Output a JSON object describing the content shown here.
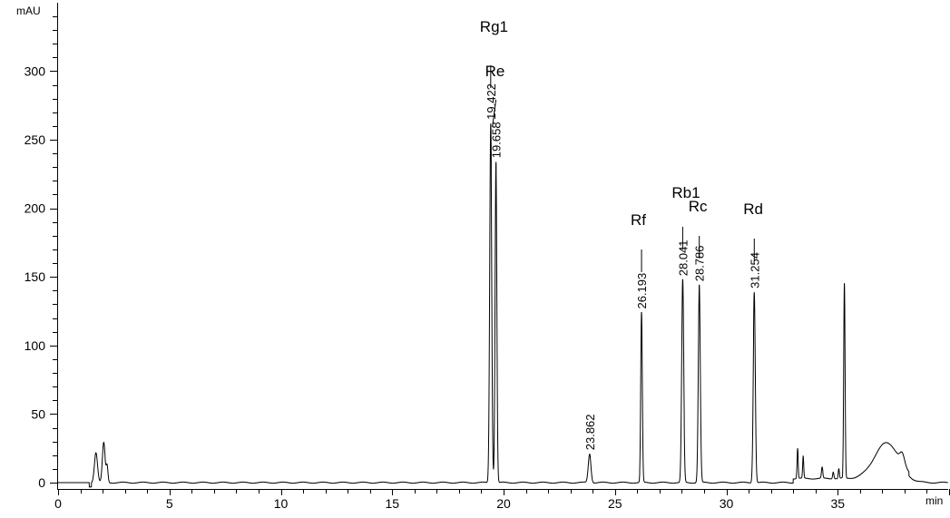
{
  "chart_data": {
    "type": "line",
    "title": "",
    "xlabel": "min",
    "ylabel": "mAU",
    "xlim": [
      0,
      40
    ],
    "ylim": [
      -5,
      350
    ],
    "x_ticks": [
      0,
      5,
      10,
      15,
      20,
      25,
      30,
      35
    ],
    "y_ticks": [
      0,
      50,
      100,
      150,
      200,
      250,
      300
    ],
    "grid": false,
    "line_color": "#000000",
    "peaks": [
      {
        "rt": 1.7,
        "height": 22,
        "width": 0.07,
        "label": ""
      },
      {
        "rt": 2.05,
        "height": 29,
        "width": 0.06,
        "label": ""
      },
      {
        "rt": 2.2,
        "height": 12,
        "width": 0.04,
        "label": ""
      },
      {
        "rt": 19.422,
        "height": 262,
        "width": 0.045,
        "label": "19.422"
      },
      {
        "rt": 19.658,
        "height": 234,
        "width": 0.04,
        "label": "19.658"
      },
      {
        "rt": 23.862,
        "height": 21,
        "width": 0.06,
        "label": "23.862"
      },
      {
        "rt": 26.193,
        "height": 124,
        "width": 0.035,
        "label": "26.193"
      },
      {
        "rt": 28.041,
        "height": 148,
        "width": 0.045,
        "label": "28.041"
      },
      {
        "rt": 28.786,
        "height": 144,
        "width": 0.045,
        "label": "28.786"
      },
      {
        "rt": 31.254,
        "height": 139,
        "width": 0.045,
        "label": "31.254"
      },
      {
        "rt": 33.2,
        "height": 22,
        "width": 0.025,
        "label": ""
      },
      {
        "rt": 33.45,
        "height": 16,
        "width": 0.025,
        "label": ""
      },
      {
        "rt": 34.3,
        "height": 8,
        "width": 0.03,
        "label": ""
      },
      {
        "rt": 34.8,
        "height": 5,
        "width": 0.03,
        "label": ""
      },
      {
        "rt": 35.05,
        "height": 7,
        "width": 0.025,
        "label": ""
      },
      {
        "rt": 35.3,
        "height": 142,
        "width": 0.03,
        "label": ""
      },
      {
        "rt": 37.2,
        "height": 26,
        "width": 0.55,
        "label": ""
      },
      {
        "rt": 37.9,
        "height": 7,
        "width": 0.1,
        "label": ""
      }
    ],
    "annotations": [
      {
        "rt": 19.422,
        "name": "Rg1"
      },
      {
        "rt": 19.658,
        "name": "Re"
      },
      {
        "rt": 26.193,
        "name": "Rf"
      },
      {
        "rt": 28.041,
        "name": "Rb1"
      },
      {
        "rt": 28.786,
        "name": "Rc"
      },
      {
        "rt": 31.254,
        "name": "Rd"
      }
    ]
  }
}
